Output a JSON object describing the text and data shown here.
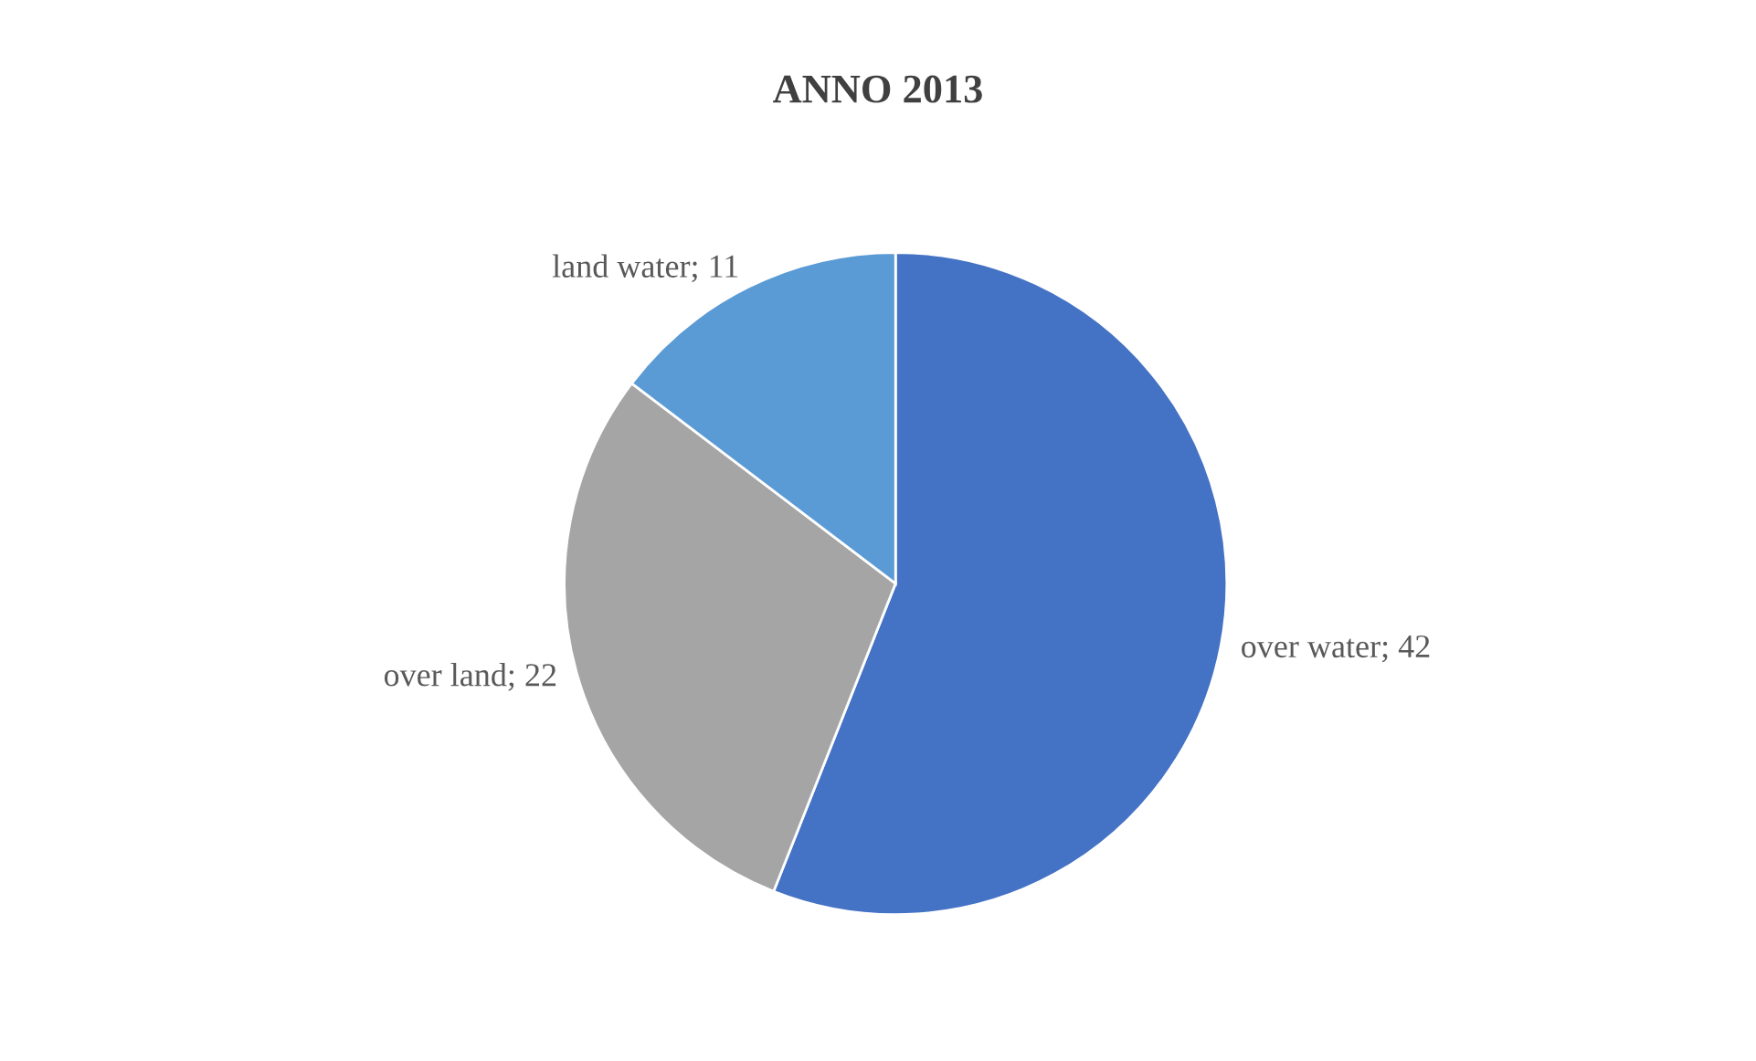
{
  "chart_data": {
    "type": "pie",
    "title": "ANNO 2013",
    "categories": [
      "over water",
      "over land",
      "land water"
    ],
    "values": [
      42,
      22,
      11
    ],
    "colors": [
      "#4472c4",
      "#a5a5a5",
      "#5b9bd5"
    ],
    "value_labels": [
      "; 42",
      "; 22",
      "; 11"
    ]
  }
}
